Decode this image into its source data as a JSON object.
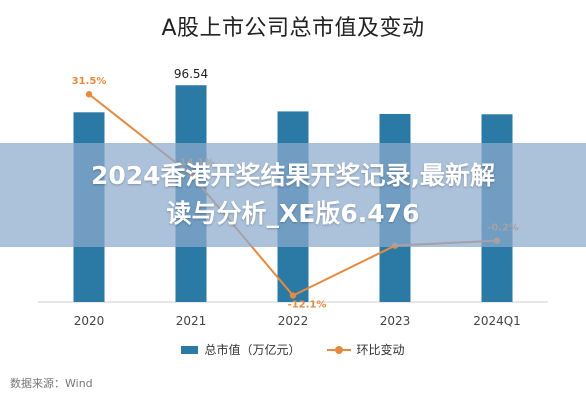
{
  "chart_data": {
    "type": "bar",
    "title": "A股上市公司总市值及变动",
    "categories": [
      "2020",
      "2021",
      "2022",
      "2023",
      "2024Q1"
    ],
    "series": [
      {
        "name": "总市值（万亿元）",
        "type": "bar",
        "color": "#2b7aa6",
        "values": [
          84.48,
          96.54,
          84.88,
          83.75,
          83.6
        ],
        "value_labels": [
          "",
          "96.54",
          "",
          "",
          ""
        ]
      },
      {
        "name": "环比变动",
        "type": "line",
        "color": "#e58a3f",
        "values": [
          31.5,
          14.1,
          -12.1,
          -1.3,
          -0.2
        ],
        "value_labels": [
          "31.5%",
          "14.1%",
          "-12.1%",
          "",
          "-0.2%"
        ]
      }
    ],
    "bar_axis_range": [
      0,
      110
    ],
    "line_axis_range": [
      -20,
      40
    ],
    "grid": false,
    "legend": "bottom-center"
  },
  "overlay": {
    "banner_line1": "2024香港开奖结果开奖记录,最新解",
    "banner_line2": "读与分析_XE版6.476"
  },
  "source": "数据来源：Wind"
}
